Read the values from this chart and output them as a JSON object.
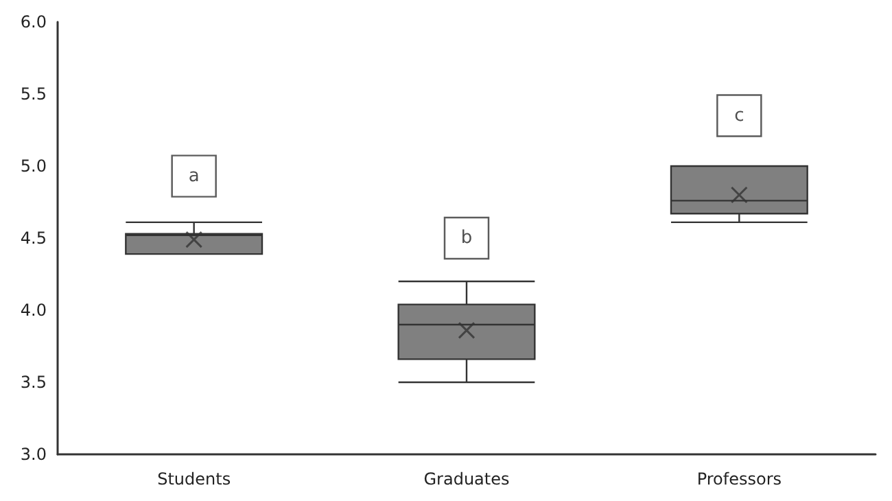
{
  "chart_data": {
    "type": "box",
    "categories": [
      "Students",
      "Graduates",
      "Professors"
    ],
    "boxes": [
      {
        "low": 4.39,
        "q1": 4.39,
        "median": 4.52,
        "q3": 4.53,
        "high": 4.61,
        "mean": 4.49
      },
      {
        "low": 3.5,
        "q1": 3.66,
        "median": 3.9,
        "q3": 4.04,
        "high": 4.2,
        "mean": 3.86
      },
      {
        "low": 4.61,
        "q1": 4.67,
        "median": 4.76,
        "q3": 5.0,
        "high": 5.0,
        "mean": 4.8
      }
    ],
    "color": "#808080",
    "ylim": [
      3.0,
      6.0
    ],
    "yticks": [
      {
        "value": 3,
        "label": "3.0"
      },
      {
        "value": 3.5,
        "label": "3.5"
      },
      {
        "value": 4,
        "label": "4.0"
      },
      {
        "value": 4.5,
        "label": "4.5"
      },
      {
        "value": 5,
        "label": "5.0"
      },
      {
        "value": 5.5,
        "label": "5.5"
      },
      {
        "value": 6,
        "label": "6.0"
      }
    ],
    "grid": false,
    "annotations": [
      {
        "text": "a",
        "x": "Students",
        "y": 4.93
      },
      {
        "text": "b",
        "x": "Graduates",
        "y": 4.5
      },
      {
        "text": "c",
        "x": "Professors",
        "y": 5.35
      }
    ]
  }
}
